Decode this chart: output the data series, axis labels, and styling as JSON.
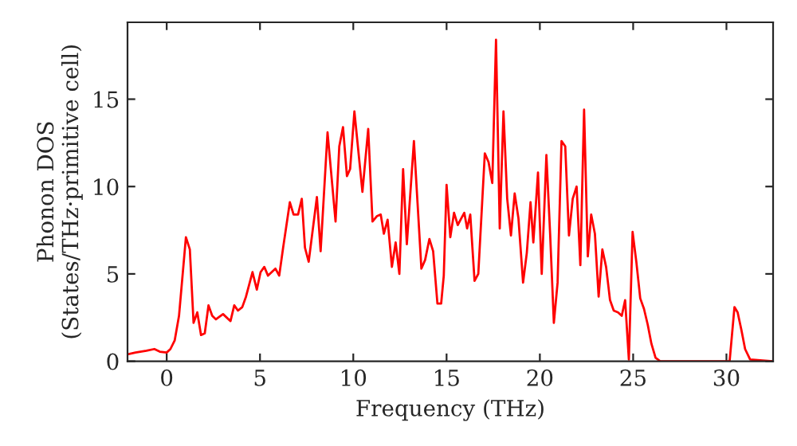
{
  "chart_data": {
    "type": "line",
    "xlabel": "Frequency (THz)",
    "ylabel": "Phonon DOS\n(States/THz·primitive cell)",
    "x": [
      -2.1,
      -1.67,
      -1.09,
      -0.66,
      -0.37,
      0,
      0.2,
      0.43,
      0.66,
      1.03,
      1.24,
      1.44,
      1.64,
      1.84,
      2.04,
      2.24,
      2.44,
      2.64,
      3.02,
      3.42,
      3.62,
      3.82,
      4.05,
      4.25,
      4.6,
      4.83,
      5.03,
      5.23,
      5.43,
      5.83,
      6.03,
      6.24,
      6.6,
      6.8,
      7.04,
      7.24,
      7.41,
      7.61,
      8.05,
      8.25,
      8.62,
      9.05,
      9.25,
      9.45,
      9.66,
      9.83,
      10.06,
      10.49,
      10.8,
      11.03,
      11.26,
      11.47,
      11.64,
      11.84,
      12.07,
      12.27,
      12.47,
      12.67,
      12.87,
      13.25,
      13.65,
      13.85,
      14.08,
      14.28,
      14.51,
      14.71,
      14.85,
      15.0,
      15.2,
      15.4,
      15.6,
      15.8,
      15.95,
      16.1,
      16.27,
      16.5,
      16.7,
      17.05,
      17.25,
      17.45,
      17.65,
      17.85,
      18.05,
      18.25,
      18.45,
      18.65,
      18.85,
      19.1,
      19.3,
      19.5,
      19.65,
      19.9,
      20.1,
      20.35,
      20.55,
      20.75,
      20.95,
      21.16,
      21.36,
      21.56,
      21.76,
      21.97,
      22.17,
      22.37,
      22.57,
      22.75,
      22.95,
      23.15,
      23.35,
      23.55,
      23.76,
      23.96,
      24.19,
      24.39,
      24.57,
      24.77,
      24.97,
      25.17,
      25.38,
      25.58,
      25.78,
      25.98,
      26.2,
      26.45,
      30.17,
      30.43,
      30.6,
      30.8,
      31.0,
      31.27,
      32.5
    ],
    "series": [
      {
        "color": "#ff0000",
        "values": [
          0.4,
          0.5,
          0.6,
          0.7,
          0.55,
          0.5,
          0.7,
          1.2,
          2.6,
          7.1,
          6.4,
          2.2,
          2.8,
          1.5,
          1.6,
          3.2,
          2.6,
          2.4,
          2.7,
          2.3,
          3.2,
          2.9,
          3.1,
          3.7,
          5.1,
          4.1,
          5.1,
          5.4,
          4.9,
          5.3,
          4.9,
          6.5,
          9.1,
          8.4,
          8.4,
          9.3,
          6.5,
          5.7,
          9.4,
          6.3,
          13.1,
          8.0,
          12.3,
          13.4,
          10.6,
          11.0,
          14.3,
          9.7,
          13.3,
          8.0,
          8.3,
          8.4,
          7.3,
          8.1,
          5.4,
          6.8,
          5.0,
          11.0,
          6.7,
          12.6,
          5.3,
          5.8,
          7.0,
          6.3,
          3.3,
          3.3,
          4.9,
          10.1,
          7.1,
          8.5,
          7.8,
          8.2,
          8.5,
          7.6,
          8.4,
          4.6,
          5.0,
          11.9,
          11.4,
          10.2,
          18.4,
          7.6,
          14.3,
          9.3,
          7.2,
          9.6,
          8.2,
          4.5,
          6.2,
          9.1,
          6.8,
          10.8,
          5.0,
          11.8,
          7.3,
          2.2,
          4.5,
          12.6,
          12.3,
          7.2,
          9.3,
          10.0,
          5.5,
          14.4,
          6.0,
          8.4,
          7.3,
          3.7,
          6.4,
          5.4,
          3.5,
          2.9,
          2.8,
          2.6,
          3.5,
          0.1,
          7.4,
          5.7,
          3.6,
          3.0,
          2.1,
          1.0,
          0.2,
          0.0,
          0.0,
          3.1,
          2.8,
          1.8,
          0.7,
          0.1,
          0.0
        ]
      }
    ],
    "xlim": [
      -2.1,
      32.5
    ],
    "ylim": [
      0,
      19.4
    ],
    "xticks": [
      0,
      5,
      10,
      15,
      20,
      25,
      30
    ],
    "yticks": [
      0,
      5,
      10,
      15
    ],
    "grid": false,
    "legend": false
  }
}
